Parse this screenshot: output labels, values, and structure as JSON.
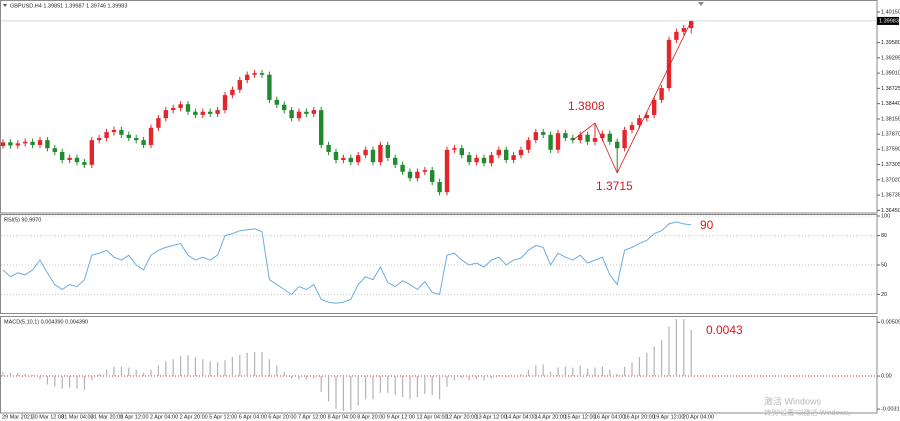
{
  "chart_data": [
    {
      "type": "candlestick",
      "title": "GBPUSD,H4 1.39851 1.39987 1.39746 1.39983",
      "up_color": "#e3262b",
      "down_color": "#1f8a2f",
      "ylim": [
        1.3642,
        1.4028
      ],
      "yticks": [
        {
          "value": 1.4015,
          "label": "1.40150"
        },
        {
          "value": 1.3958,
          "label": "1.39580"
        },
        1.39295,
        {
          "value": 1.3901,
          "label": "1.39010"
        },
        1.38725,
        {
          "value": 1.3844,
          "label": "1.38440"
        },
        1.38155,
        {
          "value": 1.3787,
          "label": "1.37870"
        },
        {
          "value": 1.3759,
          "label": "1.37590"
        },
        1.37305,
        {
          "value": 1.3702,
          "label": "1.37020"
        },
        1.36735,
        {
          "value": 1.3645,
          "label": "1.36450"
        }
      ],
      "current_price": 1.39983,
      "annotations": [
        1.3808,
        1.3715
      ],
      "annotation_color": "#d9191c",
      "categories": [
        "29 Mar 2021",
        null,
        null,
        null,
        "30 Mar 12:00",
        null,
        null,
        null,
        "31 Mar 04:00",
        null,
        null,
        null,
        "31 Mar 20:00",
        null,
        null,
        null,
        "1 Apr 12:00",
        null,
        null,
        null,
        "2 Apr 04:00",
        null,
        null,
        null,
        "2 Apr 20:00",
        null,
        null,
        null,
        "5 Apr 12:00",
        null,
        null,
        null,
        "6 Apr 04:00",
        null,
        null,
        null,
        "6 Apr 20:00",
        null,
        null,
        null,
        "7 Apr 12:00",
        null,
        null,
        null,
        "8 Apr 04:00",
        null,
        null,
        null,
        "8 Apr 20:00",
        null,
        null,
        null,
        "9 Apr 12:00",
        null,
        null,
        null,
        "12 Apr 04:00",
        null,
        null,
        null,
        "12 Apr 20:00",
        null,
        null,
        null,
        "13 Apr 12:00",
        null,
        null,
        null,
        "14 Apr 04:00",
        null,
        null,
        null,
        "14 Apr 20:00",
        null,
        null,
        null,
        "15 Apr 12:00",
        null,
        null,
        null,
        "16 Apr 04:00",
        null,
        null,
        null,
        "16 Apr 20:00",
        null,
        null,
        null,
        "19 Apr 12:00",
        null,
        null,
        null,
        "20 Apr 04:00",
        null
      ],
      "open": [
        1.3765,
        1.3772,
        1.3766,
        1.377,
        1.3773,
        1.3767,
        1.3776,
        1.3761,
        1.3754,
        1.3739,
        1.3743,
        1.3735,
        1.373,
        1.3776,
        1.378,
        1.3791,
        1.3795,
        1.3786,
        1.378,
        1.3776,
        1.3767,
        1.3799,
        1.3817,
        1.3832,
        1.3836,
        1.3843,
        1.3829,
        1.3823,
        1.3829,
        1.3825,
        1.3832,
        1.386,
        1.387,
        1.3888,
        1.3898,
        1.3901,
        1.3898,
        1.3851,
        1.3842,
        1.3832,
        1.3817,
        1.3829,
        1.3825,
        1.3832,
        1.3767,
        1.3754,
        1.3739,
        1.3743,
        1.3735,
        1.3748,
        1.3758,
        1.3735,
        1.3767,
        1.3743,
        1.373,
        1.3717,
        1.3705,
        1.3717,
        1.372,
        1.3698,
        1.3679,
        1.3758,
        1.3761,
        1.3748,
        1.3735,
        1.3743,
        1.3733,
        1.3748,
        1.3758,
        1.3739,
        1.3748,
        1.3758,
        1.3776,
        1.3791,
        1.3786,
        1.3758,
        1.3789,
        1.378,
        1.3776,
        1.3786,
        1.3773,
        1.378,
        1.3788,
        1.3773,
        1.3761,
        1.3795,
        1.3804,
        1.3817,
        1.3823,
        1.3851,
        1.3873,
        1.3963,
        1.3978,
        1.3985
      ],
      "high": [
        1.3778,
        1.3778,
        1.3776,
        1.3779,
        1.3779,
        1.3782,
        1.3782,
        1.3767,
        1.376,
        1.3749,
        1.3749,
        1.3741,
        1.3782,
        1.3786,
        1.3797,
        1.3801,
        1.3801,
        1.3792,
        1.3786,
        1.3782,
        1.3805,
        1.3823,
        1.3838,
        1.3842,
        1.3849,
        1.3849,
        1.3835,
        1.3835,
        1.3835,
        1.3838,
        1.3866,
        1.3876,
        1.3894,
        1.3904,
        1.3907,
        1.3907,
        1.3904,
        1.3857,
        1.3848,
        1.3838,
        1.3835,
        1.3835,
        1.3838,
        1.3838,
        1.3773,
        1.376,
        1.3749,
        1.3749,
        1.3754,
        1.3764,
        1.3764,
        1.3773,
        1.3773,
        1.3749,
        1.3736,
        1.3723,
        1.3723,
        1.3726,
        1.3726,
        1.3704,
        1.3764,
        1.3767,
        1.3767,
        1.3754,
        1.3749,
        1.3749,
        1.3754,
        1.3764,
        1.3764,
        1.3754,
        1.3764,
        1.3782,
        1.3797,
        1.3797,
        1.3792,
        1.3795,
        1.3795,
        1.3786,
        1.3792,
        1.3792,
        1.3808,
        1.3794,
        1.3794,
        1.3779,
        1.3801,
        1.381,
        1.3823,
        1.3829,
        1.3857,
        1.3879,
        1.3969,
        1.3984,
        1.3991,
        1.3999
      ],
      "low": [
        1.376,
        1.376,
        1.376,
        1.3764,
        1.3761,
        1.3761,
        1.3755,
        1.3748,
        1.3733,
        1.3733,
        1.3729,
        1.3724,
        1.3724,
        1.377,
        1.3774,
        1.3785,
        1.378,
        1.3774,
        1.377,
        1.3761,
        1.3761,
        1.3793,
        1.3811,
        1.3826,
        1.383,
        1.3823,
        1.3817,
        1.3817,
        1.3819,
        1.3819,
        1.3826,
        1.3854,
        1.3864,
        1.3882,
        1.3892,
        1.3892,
        1.3845,
        1.3836,
        1.3826,
        1.3811,
        1.3811,
        1.3819,
        1.3819,
        1.3761,
        1.3748,
        1.3733,
        1.3733,
        1.3729,
        1.3729,
        1.3742,
        1.3729,
        1.3729,
        1.3737,
        1.3724,
        1.3711,
        1.3699,
        1.3699,
        1.3711,
        1.3692,
        1.3673,
        1.3673,
        1.3752,
        1.3742,
        1.3729,
        1.3729,
        1.3727,
        1.3727,
        1.3742,
        1.3733,
        1.3733,
        1.3742,
        1.3752,
        1.377,
        1.378,
        1.3752,
        1.3752,
        1.3774,
        1.377,
        1.377,
        1.3767,
        1.3767,
        1.3774,
        1.3767,
        1.3715,
        1.3755,
        1.3789,
        1.3798,
        1.3811,
        1.3817,
        1.3845,
        1.3867,
        1.3957,
        1.3972,
        1.3975
      ],
      "close": [
        1.3772,
        1.3766,
        1.377,
        1.3773,
        1.3767,
        1.3776,
        1.3761,
        1.3754,
        1.3739,
        1.3743,
        1.3735,
        1.373,
        1.3776,
        1.378,
        1.3791,
        1.3795,
        1.3786,
        1.378,
        1.3776,
        1.3767,
        1.3799,
        1.3817,
        1.3832,
        1.3836,
        1.3843,
        1.3829,
        1.3823,
        1.3829,
        1.3825,
        1.3832,
        1.386,
        1.387,
        1.3888,
        1.3898,
        1.3901,
        1.3898,
        1.3851,
        1.3842,
        1.3832,
        1.3817,
        1.3829,
        1.3825,
        1.3832,
        1.3767,
        1.3754,
        1.3739,
        1.3743,
        1.3735,
        1.3748,
        1.3758,
        1.3735,
        1.3767,
        1.3743,
        1.373,
        1.3717,
        1.3705,
        1.3717,
        1.372,
        1.3698,
        1.3679,
        1.3758,
        1.3761,
        1.3748,
        1.3735,
        1.3743,
        1.3733,
        1.3748,
        1.3758,
        1.3739,
        1.3748,
        1.3758,
        1.3776,
        1.3791,
        1.3786,
        1.3758,
        1.3789,
        1.378,
        1.3776,
        1.3786,
        1.3773,
        1.378,
        1.3788,
        1.3773,
        1.3761,
        1.3795,
        1.3804,
        1.3817,
        1.3823,
        1.3851,
        1.3873,
        1.3963,
        1.3978,
        1.3985,
        1.3998
      ]
    },
    {
      "type": "line",
      "title": "RSI(5) 90.9970",
      "color": "#6aaee0",
      "grid": true,
      "ylim": [
        0,
        100
      ],
      "yticks": [
        100,
        80,
        50,
        20
      ],
      "annotations": [
        90
      ],
      "annotation_color": "#d9191c",
      "values": [
        45,
        38,
        42,
        40,
        45,
        55,
        42,
        30,
        25,
        30,
        28,
        35,
        60,
        62,
        65,
        58,
        55,
        60,
        50,
        45,
        60,
        65,
        68,
        70,
        72,
        60,
        55,
        58,
        55,
        60,
        80,
        82,
        85,
        86,
        87,
        84,
        35,
        30,
        25,
        20,
        28,
        25,
        30,
        15,
        12,
        11,
        12,
        15,
        30,
        38,
        35,
        48,
        32,
        28,
        34,
        30,
        25,
        33,
        22,
        20,
        60,
        62,
        55,
        50,
        52,
        48,
        55,
        58,
        50,
        55,
        57,
        65,
        70,
        68,
        50,
        62,
        58,
        55,
        60,
        52,
        55,
        58,
        40,
        30,
        65,
        68,
        72,
        75,
        82,
        85,
        92,
        94,
        92,
        90.997
      ]
    },
    {
      "type": "bar",
      "title": "MACD(5,10,1) 0.004390 0.004390",
      "color": "#b4b4b4",
      "zero_line": true,
      "zero_line_color": "#e3262b",
      "ylim": [
        -0.0035,
        0.0055
      ],
      "yticks": [
        0.005096,
        {
          "value": 0,
          "label": "0.00"
        },
        -0.003127
      ],
      "annotations": [
        0.0043
      ],
      "annotation_color": "#d9191c",
      "values": [
        0.0004,
        0.0003,
        0.0003,
        0.0002,
        0.0001,
        -0.0003,
        -0.0008,
        -0.001,
        -0.0012,
        -0.0011,
        -0.0012,
        -0.0013,
        -0.0004,
        0.0002,
        0.0006,
        0.0009,
        0.0009,
        0.0008,
        0.0006,
        0.0003,
        0.0006,
        0.001,
        0.0014,
        0.0016,
        0.0019,
        0.002,
        0.0018,
        0.0016,
        0.0014,
        0.0013,
        0.0015,
        0.0018,
        0.002,
        0.0022,
        0.0023,
        0.0023,
        0.0016,
        0.001,
        0.0004,
        -0.0002,
        -0.0003,
        -0.0003,
        -0.0002,
        -0.0015,
        -0.0024,
        -0.0031,
        -0.0033,
        -0.0032,
        -0.0028,
        -0.0022,
        -0.0022,
        -0.0016,
        -0.0016,
        -0.0018,
        -0.002,
        -0.0022,
        -0.002,
        -0.0017,
        -0.0018,
        -0.0022,
        -0.001,
        -0.0004,
        -0.0002,
        -0.0004,
        -0.0003,
        -0.0004,
        -0.0002,
        0.0001,
        -0.0001,
        0,
        0.0002,
        0.0006,
        0.001,
        0.0011,
        0.0004,
        0.0008,
        0.0009,
        0.0008,
        0.001,
        0.0007,
        0.0008,
        0.0009,
        0.0006,
        0.0002,
        0.0009,
        0.0013,
        0.0018,
        0.0022,
        0.0028,
        0.0034,
        0.0047,
        0.0054,
        0.0054,
        0.00439
      ]
    }
  ],
  "watermark": [
    "激活 Windows",
    "转到“设置”以激活 Windows。"
  ]
}
